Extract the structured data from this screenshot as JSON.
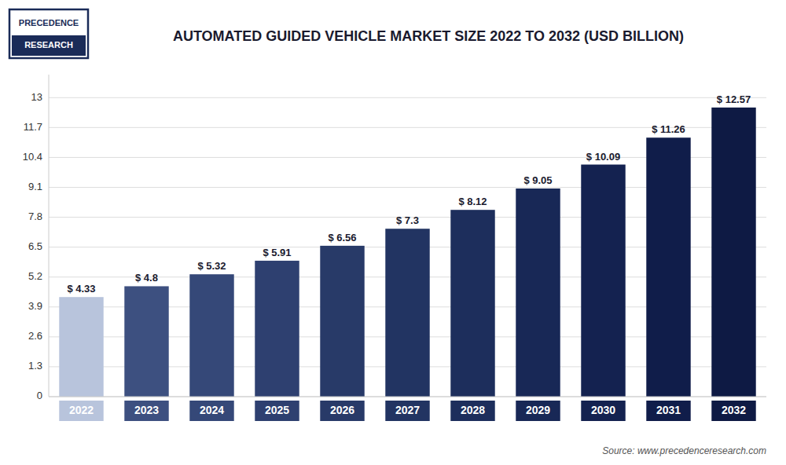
{
  "chart_data": {
    "type": "bar",
    "title": "AUTOMATED GUIDED VEHICLE MARKET SIZE 2022 TO 2032 (USD BILLION)",
    "categories": [
      "2022",
      "2023",
      "2024",
      "2025",
      "2026",
      "2027",
      "2028",
      "2029",
      "2030",
      "2031",
      "2032"
    ],
    "values": [
      4.33,
      4.8,
      5.32,
      5.91,
      6.56,
      7.3,
      8.12,
      9.05,
      10.09,
      11.26,
      12.57
    ],
    "value_labels": [
      "$ 4.33",
      "$ 4.8",
      "$ 5.32",
      "$ 5.91",
      "$ 6.56",
      "$ 7.3",
      "$ 8.12",
      "$ 9.05",
      "$ 10.09",
      "$ 11.26",
      "$ 12.57"
    ],
    "colors": [
      "#b8c4dc",
      "#3d5080",
      "#354878",
      "#2e4070",
      "#283a68",
      "#223462",
      "#1d2e5c",
      "#182856",
      "#142250",
      "#101d4a",
      "#0e1a44"
    ],
    "ylim": [
      0,
      14.0
    ],
    "yticks": [
      0,
      1.3,
      2.6,
      3.9,
      5.2,
      6.5,
      7.8,
      9.1,
      10.4,
      11.7,
      13
    ],
    "grid": true,
    "data_labels": true,
    "annotations": [
      "Source: www.precedenceresearch.com",
      "PRECEDENCE",
      "RESEARCH"
    ]
  }
}
